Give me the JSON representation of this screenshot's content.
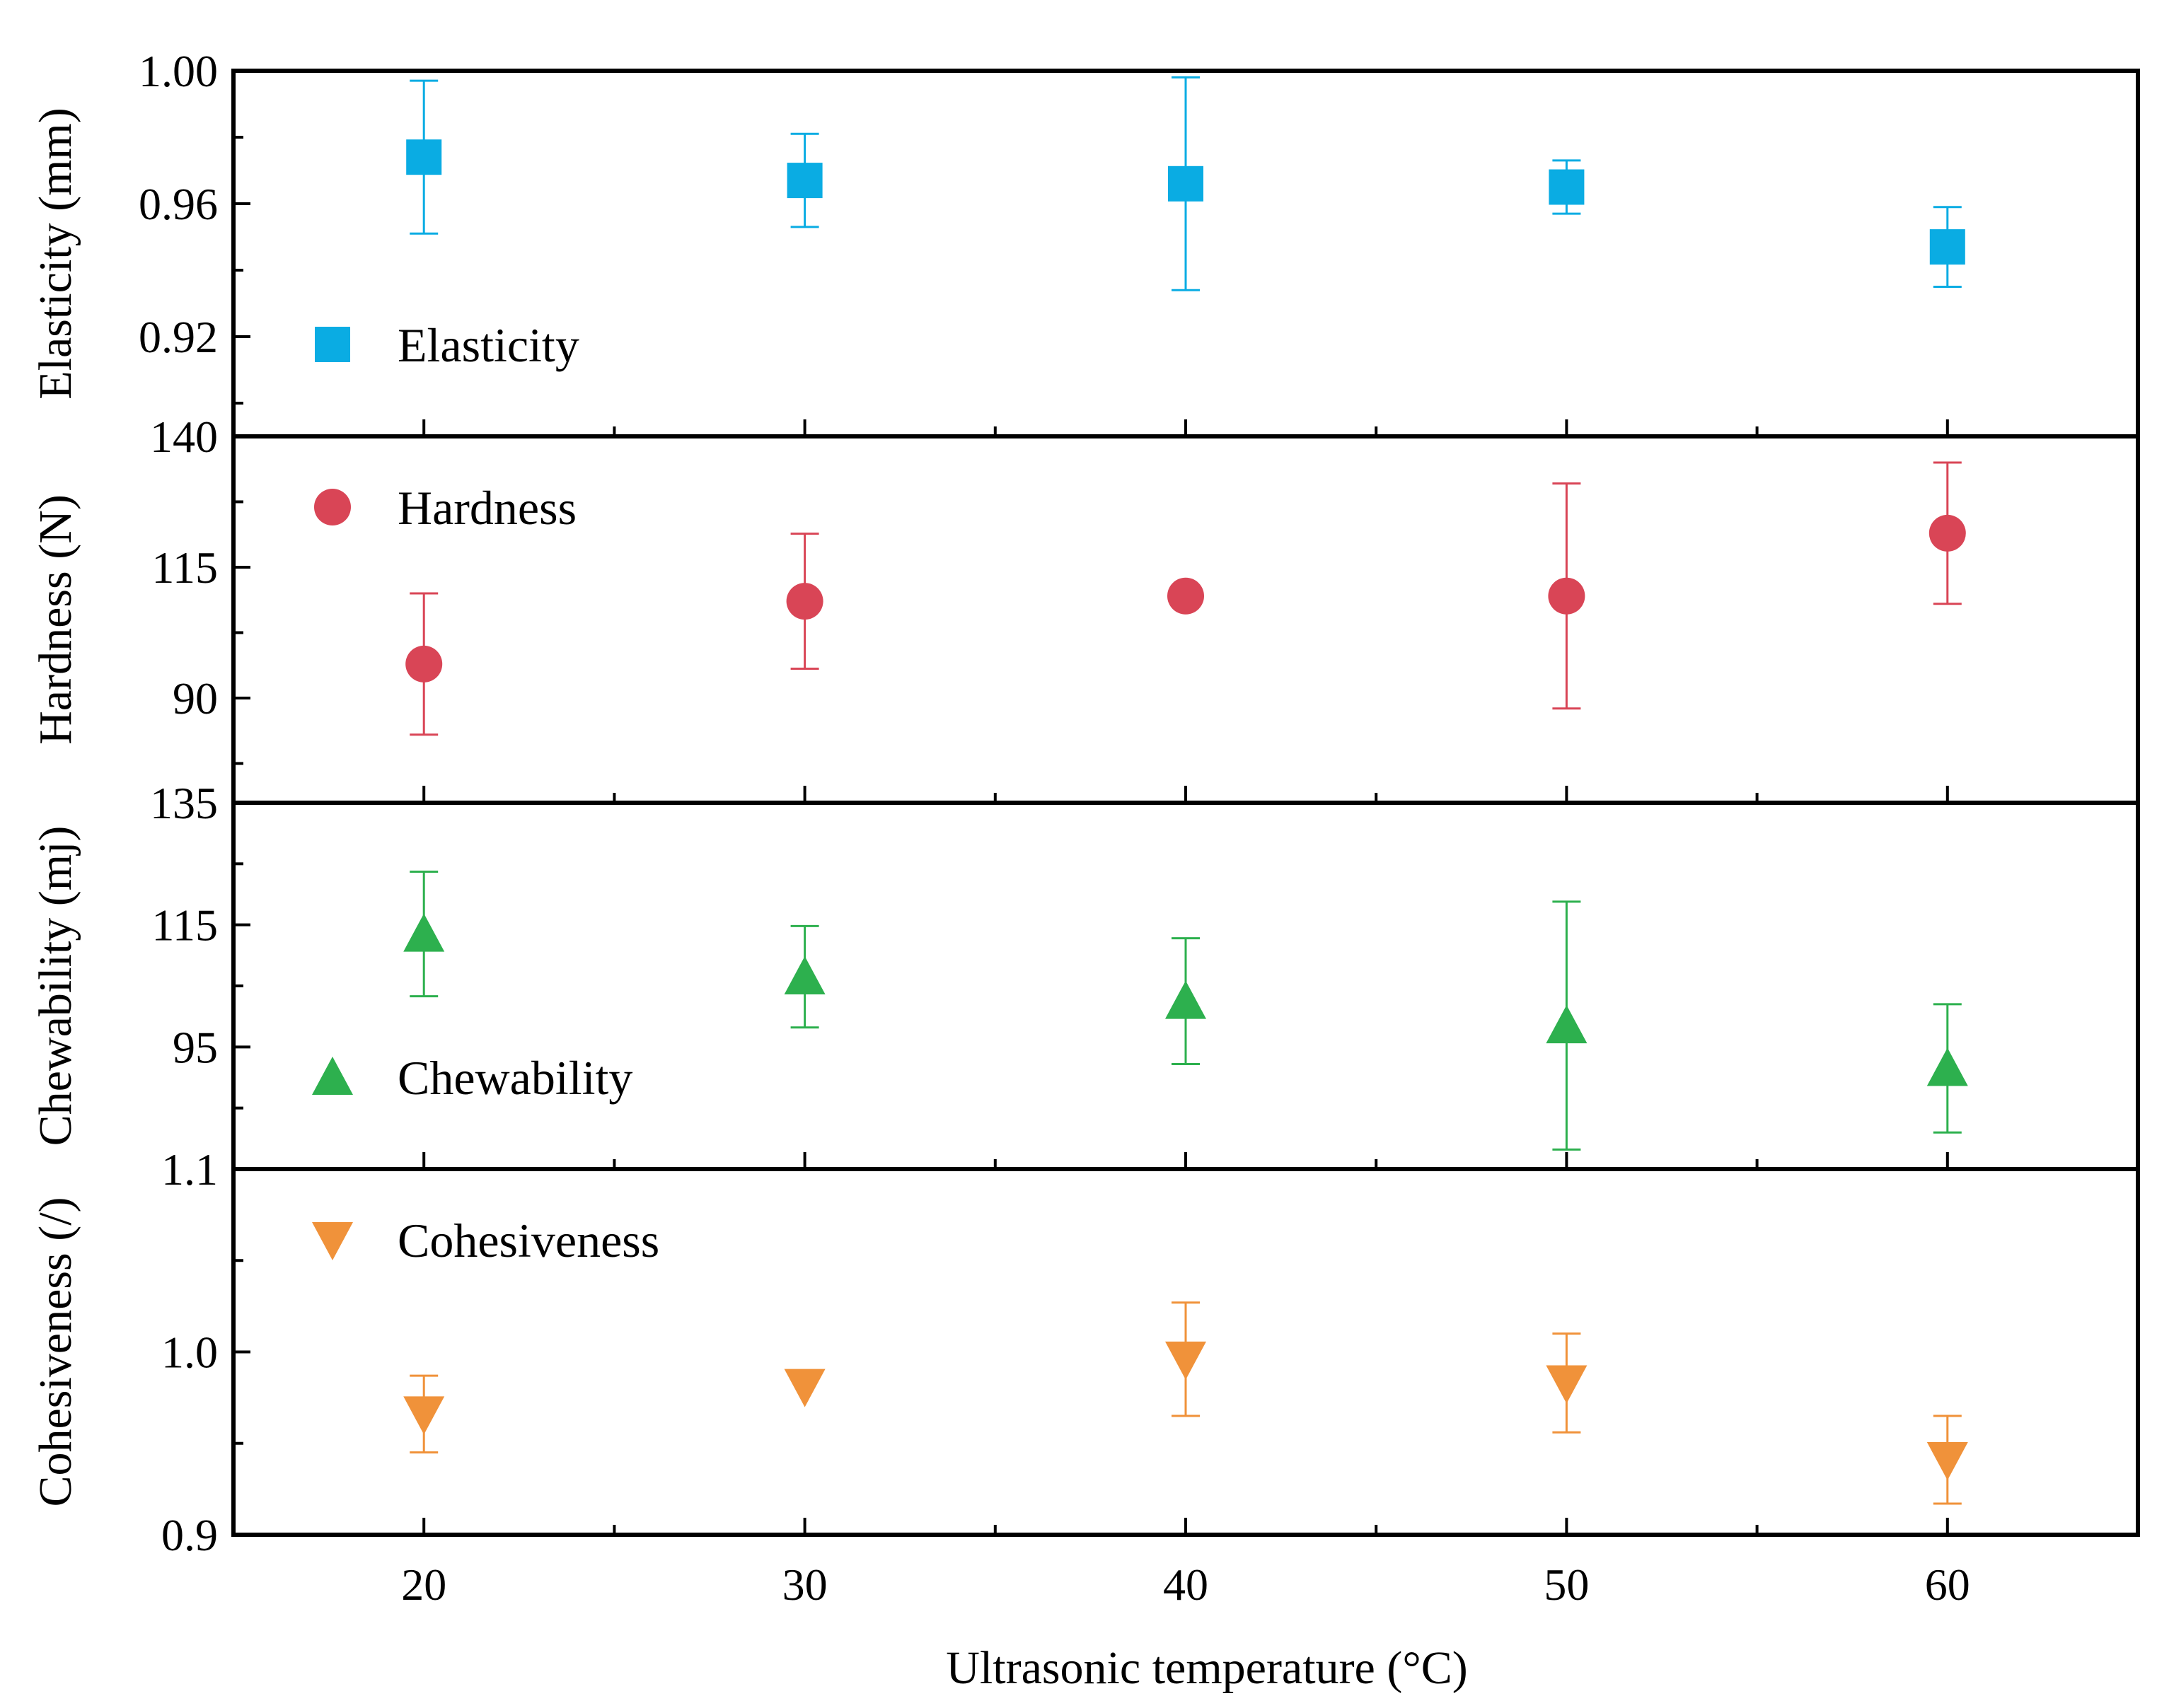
{
  "chart_data": {
    "type": "scatter",
    "layout": "stacked-panels",
    "xlabel": "Ultrasonic temperature (°C)",
    "x_ticks": [
      20,
      30,
      40,
      50,
      60
    ],
    "x_tick_labels": [
      "20",
      "30",
      "40",
      "50",
      "60"
    ],
    "xlim": [
      15,
      65
    ],
    "panels": [
      {
        "id": "elasticity",
        "ylabel": "Elasticity (mm)",
        "legend_label": "Elasticity",
        "legend_position": "bottom-left",
        "marker": "square",
        "color": "#0AACE3",
        "ylim": [
          0.89,
          1.0
        ],
        "y_ticks": [
          0.92,
          0.96,
          1.0
        ],
        "y_tick_labels": [
          "0.92",
          "0.96",
          "1.00"
        ],
        "x": [
          20,
          30,
          40,
          50,
          60
        ],
        "values": [
          0.974,
          0.967,
          0.966,
          0.965,
          0.947
        ],
        "errors": [
          0.023,
          0.014,
          0.032,
          0.008,
          0.012
        ]
      },
      {
        "id": "hardness",
        "ylabel": "Hardness (N)",
        "legend_label": "Hardness",
        "legend_position": "top-left",
        "marker": "circle",
        "color": "#D94556",
        "ylim": [
          70,
          140
        ],
        "y_ticks": [
          90,
          115,
          140
        ],
        "y_tick_labels": [
          "90",
          "115",
          "140"
        ],
        "x": [
          20,
          30,
          40,
          50,
          60
        ],
        "values": [
          96.5,
          108.5,
          109.5,
          109.5,
          121.5
        ],
        "errors": [
          13.5,
          12.9,
          0,
          21.5,
          13.5
        ]
      },
      {
        "id": "chewability",
        "ylabel": "Chewability (mj)",
        "legend_label": "Chewability",
        "legend_position": "bottom-left",
        "marker": "triangle-up",
        "color": "#2DB04E",
        "ylim": [
          75,
          135
        ],
        "y_ticks": [
          95,
          115,
          135
        ],
        "y_tick_labels": [
          "95",
          "115",
          "135"
        ],
        "x": [
          20,
          30,
          40,
          50,
          60
        ],
        "values": [
          113.5,
          106.5,
          102.5,
          98.5,
          91.5
        ],
        "errors": [
          10.2,
          8.3,
          10.3,
          20.3,
          10.5
        ]
      },
      {
        "id": "cohesiveness",
        "ylabel": "Cohesiveness (/)",
        "legend_label": "Cohesiveness",
        "legend_position": "top-left",
        "marker": "triangle-down",
        "color": "#F0923A",
        "ylim": [
          0.9,
          1.1
        ],
        "y_ticks": [
          0.9,
          1.0,
          1.1
        ],
        "y_tick_labels": [
          "0.9",
          "1.0",
          "1.1"
        ],
        "x": [
          20,
          30,
          40,
          50,
          60
        ],
        "values": [
          0.966,
          0.981,
          0.996,
          0.983,
          0.941
        ],
        "errors": [
          0.021,
          0,
          0.031,
          0.027,
          0.024
        ]
      }
    ]
  }
}
